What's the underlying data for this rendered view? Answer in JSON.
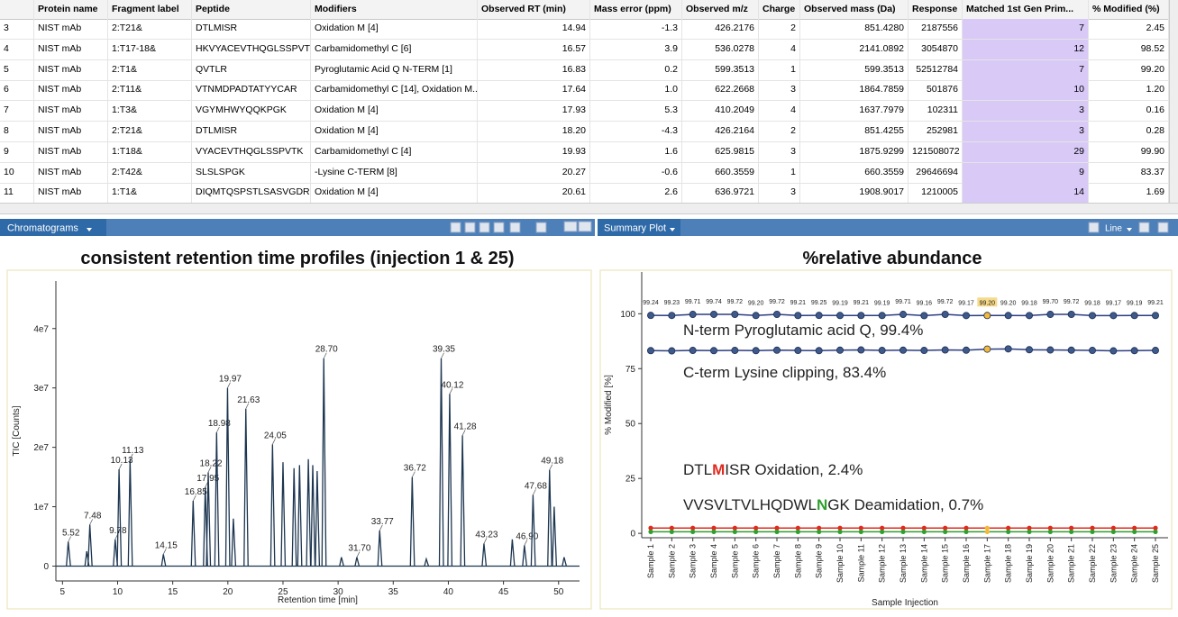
{
  "table": {
    "columns": [
      "",
      "Protein name",
      "Fragment label",
      "Peptide",
      "Modifiers",
      "Observed RT (min)",
      "Mass error (ppm)",
      "Observed m/z",
      "Charge",
      "Observed mass (Da)",
      "Response",
      "Matched 1st Gen Prim...",
      "% Modified (%)"
    ],
    "rows": [
      [
        "3",
        "NIST mAb",
        "2:T21&",
        "DTLMISR",
        "Oxidation M [4]",
        "14.94",
        "-1.3",
        "426.2176",
        "2",
        "851.4280",
        "2187556",
        "7",
        "2.45"
      ],
      [
        "4",
        "NIST mAb",
        "1:T17-18&",
        "HKVYACEVTHQGLSSPVTK",
        "Carbamidomethyl C [6]",
        "16.57",
        "3.9",
        "536.0278",
        "4",
        "2141.0892",
        "3054870",
        "12",
        "98.52"
      ],
      [
        "5",
        "NIST mAb",
        "2:T1&",
        "QVTLR",
        "Pyroglutamic Acid Q N-TERM [1]",
        "16.83",
        "0.2",
        "599.3513",
        "1",
        "599.3513",
        "52512784",
        "7",
        "99.20"
      ],
      [
        "6",
        "NIST mAb",
        "2:T11&",
        "VTNMDPADTATYYCAR",
        "Carbamidomethyl C [14], Oxidation M...",
        "17.64",
        "1.0",
        "622.2668",
        "3",
        "1864.7859",
        "501876",
        "10",
        "1.20"
      ],
      [
        "7",
        "NIST mAb",
        "1:T3&",
        "VGYMHWYQQKPGK",
        "Oxidation M [4]",
        "17.93",
        "5.3",
        "410.2049",
        "4",
        "1637.7979",
        "102311",
        "3",
        "0.16"
      ],
      [
        "8",
        "NIST mAb",
        "2:T21&",
        "DTLMISR",
        "Oxidation M [4]",
        "18.20",
        "-4.3",
        "426.2164",
        "2",
        "851.4255",
        "252981",
        "3",
        "0.28"
      ],
      [
        "9",
        "NIST mAb",
        "1:T18&",
        "VYACEVTHQGLSSPVTK",
        "Carbamidomethyl C [4]",
        "19.93",
        "1.6",
        "625.9815",
        "3",
        "1875.9299",
        "121508072",
        "29",
        "99.90"
      ],
      [
        "10",
        "NIST mAb",
        "2:T42&",
        "SLSLSPGK",
        "-Lysine C-TERM [8]",
        "20.27",
        "-0.6",
        "660.3559",
        "1",
        "660.3559",
        "29646694",
        "9",
        "83.37"
      ],
      [
        "11",
        "NIST mAb",
        "1:T1&",
        "DIQMTQSPSTLSASVGDR",
        "Oxidation M [4]",
        "20.61",
        "2.6",
        "636.9721",
        "3",
        "1908.9017",
        "1210005",
        "14",
        "1.69"
      ]
    ]
  },
  "left_panel": {
    "tab": "Chromatograms",
    "title": "consistent retention time profiles (injection 1 & 25)",
    "chart": {
      "type": "chromatogram",
      "xlabel": "Retention time [min]",
      "ylabel": "TIC [Counts]",
      "xlim": [
        4.4,
        51.9
      ],
      "ylim": [
        -2500000,
        48000000
      ],
      "xticks": [
        5,
        10,
        15,
        20,
        25,
        30,
        35,
        40,
        45,
        50
      ],
      "yticks": [
        0,
        {
          "value": 10000000,
          "label": "1e7"
        },
        {
          "value": 20000000,
          "label": "2e7"
        },
        {
          "value": 30000000,
          "label": "3e7"
        },
        {
          "value": 40000000,
          "label": "4e7"
        }
      ],
      "color": "#1c3550",
      "peaks": {
        "x": [
          5.52,
          7.48,
          9.78,
          10.13,
          11.13,
          14.15,
          16.85,
          17.95,
          18.22,
          18.98,
          19.97,
          21.63,
          24.05,
          28.7,
          31.7,
          33.77,
          36.72,
          39.35,
          40.12,
          41.28,
          43.23,
          46.9,
          47.68,
          49.18
        ],
        "x_labels": [
          "5.52",
          "7.48",
          "9.78",
          "10.13",
          "11.13",
          "14.15",
          "16.85",
          "17.95",
          "18.22",
          "18.98",
          "19.97",
          "21.63",
          "24.05",
          "28.70",
          "31.70",
          "33.77",
          "36.72",
          "39.35",
          "40.12",
          "41.28",
          "43.23",
          "46.90",
          "47.68",
          "49.18"
        ],
        "values": [
          4100000,
          7000000,
          4500000,
          16300000,
          18000000,
          2000000,
          11000000,
          13300000,
          15800000,
          22500000,
          30000000,
          26500000,
          20500000,
          35000000,
          1500000,
          6000000,
          15000000,
          35000000,
          29000000,
          22000000,
          3800000,
          3500000,
          12000000,
          16200000
        ]
      },
      "other_peaks": {
        "x": [
          7.2,
          20.5,
          25.0,
          26.0,
          26.5,
          27.3,
          27.7,
          28.1,
          30.3,
          38.0,
          45.8,
          49.6,
          50.5
        ],
        "values": [
          2500000,
          8000000,
          17500000,
          16500000,
          17000000,
          18000000,
          17000000,
          16000000,
          1500000,
          1200000,
          4500000,
          10000000,
          1500000
        ]
      }
    }
  },
  "right_panel": {
    "tab": "Summary Plot",
    "view": "Line",
    "title": "%relative abundance",
    "chart": {
      "type": "line",
      "xlabel": "Sample Injection",
      "ylabel": "% Modified [%]",
      "ylim": [
        -2,
        119
      ],
      "yticks": [
        0,
        25,
        50,
        75,
        100
      ],
      "selected": 16,
      "categories": [
        "Sample 1",
        "Sample 2",
        "Sample 3",
        "Sample 4",
        "Sample 5",
        "Sample 6",
        "Sample 7",
        "Sample 8",
        "Sample 9",
        "Sample 10",
        "Sample 11",
        "Sample 12",
        "Sample 13",
        "Sample 14",
        "Sample 15",
        "Sample 16",
        "Sample 17",
        "Sample 18",
        "Sample 19",
        "Sample 20",
        "Sample 21",
        "Sample 22",
        "Sample 23",
        "Sample 24",
        "Sample 25"
      ],
      "series": [
        {
          "color": "#2b3d80",
          "values": [
            99.24,
            99.23,
            99.71,
            99.74,
            99.72,
            99.2,
            99.72,
            99.21,
            99.25,
            99.19,
            99.21,
            99.19,
            99.71,
            99.16,
            99.72,
            99.17,
            99.2,
            99.2,
            99.18,
            99.7,
            99.72,
            99.18,
            99.17,
            99.19,
            99.21
          ],
          "value_labels": [
            "99.24",
            "99.23",
            "99.71",
            "99.74",
            "99.72",
            "99.20",
            "99.72",
            "99.21",
            "99.25",
            "99.19",
            "99.21",
            "99.19",
            "99.71",
            "99.16",
            "99.72",
            "99.17",
            "99.20",
            "99.20",
            "99.18",
            "99.70",
            "99.72",
            "99.18",
            "99.17",
            "99.19",
            "99.21"
          ]
        },
        {
          "color": "#2b3d80",
          "values": [
            83.2,
            83.1,
            83.3,
            83.2,
            83.3,
            83.2,
            83.4,
            83.3,
            83.2,
            83.4,
            83.5,
            83.3,
            83.4,
            83.3,
            83.5,
            83.4,
            83.9,
            84.0,
            83.6,
            83.5,
            83.4,
            83.3,
            83.1,
            83.2,
            83.3
          ]
        },
        {
          "color": "#e02a20",
          "values": [
            2.4,
            2.4,
            2.4,
            2.4,
            2.4,
            2.4,
            2.4,
            2.4,
            2.4,
            2.4,
            2.4,
            2.4,
            2.4,
            2.4,
            2.4,
            2.4,
            2.4,
            2.4,
            2.4,
            2.4,
            2.4,
            2.4,
            2.4,
            2.4,
            2.4
          ]
        },
        {
          "color": "#2ea02e",
          "values": [
            0.7,
            0.7,
            0.7,
            0.7,
            0.7,
            0.7,
            0.7,
            0.7,
            0.7,
            0.7,
            0.7,
            0.7,
            0.7,
            0.7,
            0.7,
            0.7,
            0.7,
            0.7,
            0.7,
            0.7,
            0.7,
            0.7,
            0.7,
            0.7,
            0.7
          ]
        }
      ],
      "annotations": [
        {
          "parts": [
            {
              "text": "N-term Pyroglutamic acid Q, 99.4%"
            }
          ]
        },
        {
          "parts": [
            {
              "text": "C-term Lysine clipping, 83.4%"
            }
          ]
        },
        {
          "parts": [
            {
              "text": "DTL"
            },
            {
              "text": "M",
              "color": "#e02a20"
            },
            {
              "text": "ISR Oxidation, 2.4%"
            }
          ]
        },
        {
          "parts": [
            {
              "text": "VVSVLTVLHQDWL"
            },
            {
              "text": "N",
              "color": "#2ea02e"
            },
            {
              "text": "GK Deamidation, 0.7%"
            }
          ]
        }
      ]
    }
  }
}
